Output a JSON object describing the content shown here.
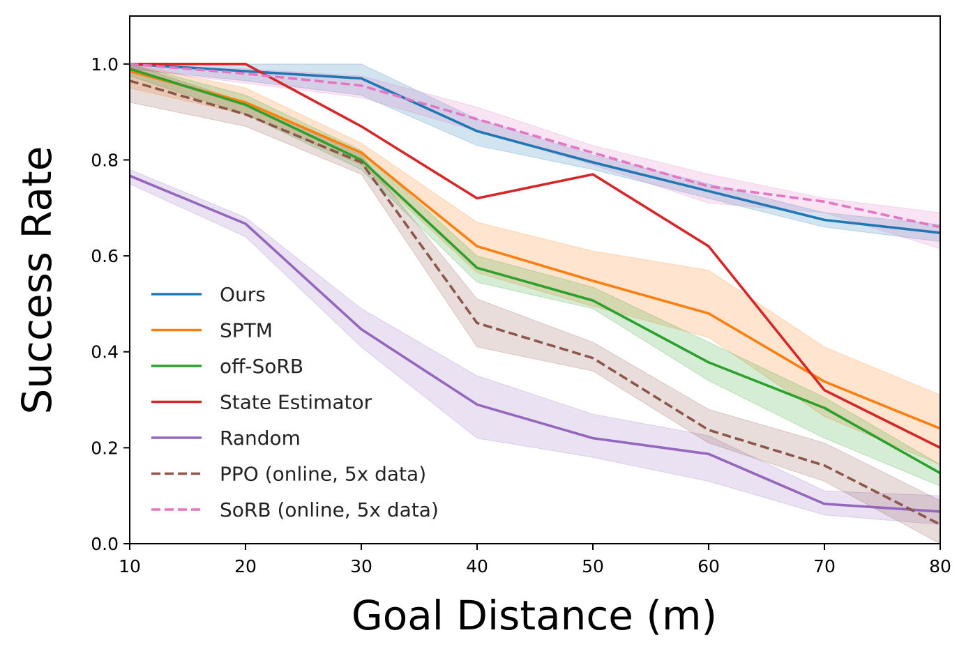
{
  "chart_data": {
    "type": "line",
    "xlabel": "Goal Distance (m)",
    "ylabel": "Success Rate",
    "xlim": [
      10,
      80
    ],
    "ylim": [
      0.0,
      1.1
    ],
    "x_ticks": [
      "10",
      "20",
      "30",
      "40",
      "50",
      "60",
      "70",
      "80"
    ],
    "y_ticks": [
      "0.0",
      "0.2",
      "0.4",
      "0.6",
      "0.8",
      "1.0"
    ],
    "x_tick_values": [
      10,
      20,
      30,
      40,
      50,
      60,
      70,
      80
    ],
    "y_tick_values": [
      0.0,
      0.2,
      0.4,
      0.6,
      0.8,
      1.0
    ],
    "grid": false,
    "legend_position": "lower-left",
    "x": [
      10,
      20,
      30,
      40,
      50,
      60,
      70,
      80
    ],
    "series": [
      {
        "name": "Ours",
        "color": "#1f77b4",
        "dash": false,
        "values": [
          1.0,
          0.985,
          0.97,
          0.86,
          0.795,
          0.735,
          0.675,
          0.648
        ],
        "lower": [
          0.99,
          0.965,
          0.935,
          0.83,
          0.78,
          0.72,
          0.66,
          0.63
        ],
        "upper": [
          1.0,
          1.0,
          1.0,
          0.885,
          0.81,
          0.75,
          0.69,
          0.665
        ]
      },
      {
        "name": "SPTM",
        "color": "#ff7f0e",
        "dash": false,
        "values": [
          0.985,
          0.92,
          0.815,
          0.62,
          0.548,
          0.48,
          0.338,
          0.24
        ],
        "lower": [
          0.95,
          0.895,
          0.79,
          0.565,
          0.495,
          0.43,
          0.265,
          0.165
        ],
        "upper": [
          1.0,
          0.95,
          0.835,
          0.67,
          0.61,
          0.57,
          0.41,
          0.31
        ]
      },
      {
        "name": "off-SoRB",
        "color": "#2ca02c",
        "dash": false,
        "values": [
          0.99,
          0.915,
          0.8,
          0.575,
          0.507,
          0.378,
          0.283,
          0.147
        ],
        "lower": [
          0.975,
          0.895,
          0.78,
          0.545,
          0.49,
          0.34,
          0.22,
          0.12
        ],
        "upper": [
          1.0,
          0.935,
          0.82,
          0.6,
          0.535,
          0.42,
          0.305,
          0.165
        ]
      },
      {
        "name": "State Estimator",
        "color": "#d62728",
        "dash": false,
        "values": [
          1.0,
          1.0,
          0.87,
          0.72,
          0.77,
          0.62,
          0.32,
          0.2
        ]
      },
      {
        "name": "Random",
        "color": "#9467bd",
        "dash": false,
        "values": [
          0.767,
          0.667,
          0.447,
          0.29,
          0.22,
          0.187,
          0.083,
          0.067
        ],
        "lower": [
          0.75,
          0.64,
          0.41,
          0.22,
          0.18,
          0.13,
          0.06,
          0.04
        ],
        "upper": [
          0.78,
          0.68,
          0.49,
          0.35,
          0.27,
          0.225,
          0.11,
          0.1
        ]
      },
      {
        "name": "PPO (online, 5x data)",
        "color": "#8c564b",
        "dash": true,
        "values": [
          0.965,
          0.895,
          0.795,
          0.46,
          0.387,
          0.237,
          0.163,
          0.04
        ],
        "lower": [
          0.92,
          0.87,
          0.77,
          0.41,
          0.36,
          0.21,
          0.13,
          0.0
        ],
        "upper": [
          1.0,
          0.92,
          0.81,
          0.51,
          0.42,
          0.28,
          0.21,
          0.09
        ]
      },
      {
        "name": "SoRB (online, 5x data)",
        "color": "#e377c2",
        "dash": true,
        "values": [
          1.0,
          0.98,
          0.955,
          0.885,
          0.815,
          0.745,
          0.713,
          0.66
        ],
        "lower": [
          0.99,
          0.96,
          0.93,
          0.86,
          0.79,
          0.71,
          0.69,
          0.615
        ],
        "upper": [
          1.0,
          0.99,
          0.975,
          0.91,
          0.83,
          0.77,
          0.72,
          0.69
        ]
      }
    ]
  }
}
